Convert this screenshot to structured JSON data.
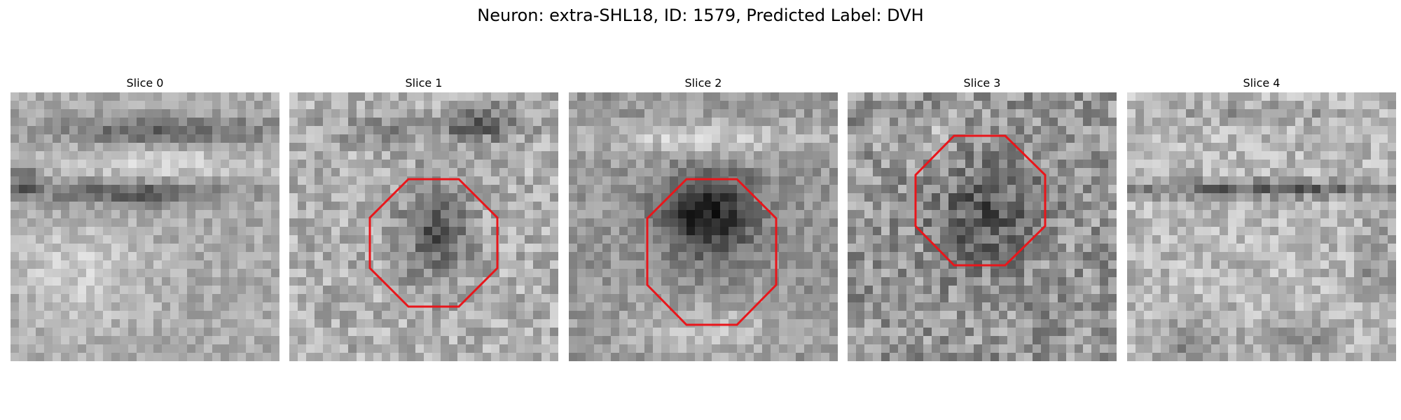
{
  "title": "Neuron: extra-SHL18, ID: 1579, Predicted Label: DVH",
  "panels": [
    {
      "label": "Slice 0",
      "roi": false
    },
    {
      "label": "Slice 1",
      "roi": true
    },
    {
      "label": "Slice 2",
      "roi": true
    },
    {
      "label": "Slice 3",
      "roi": true
    },
    {
      "label": "Slice 4",
      "roi": false
    }
  ],
  "colors": {
    "roi_outline": "#e8161b",
    "background": "#ffffff"
  }
}
